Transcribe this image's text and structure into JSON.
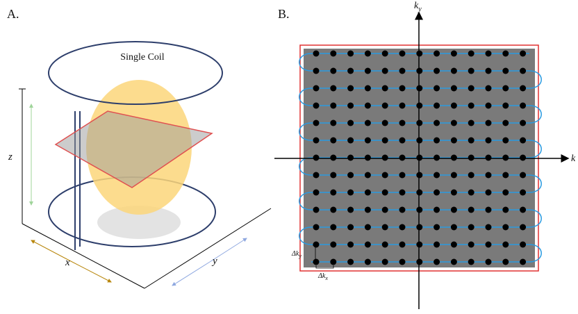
{
  "panels": [
    {
      "label": "A.",
      "coil": "Single Coil",
      "axes": {
        "z": "z",
        "x": "x",
        "y": "y"
      }
    },
    {
      "label": "B.",
      "axes": {
        "ky": {
          "main": "k",
          "sub": "y"
        },
        "kx": {
          "main": "k"
        }
      },
      "spacing": {
        "dky": {
          "main": "Δk",
          "sub": "y"
        },
        "dkx": {
          "main": "Δk",
          "sub": "x"
        }
      }
    }
  ]
}
